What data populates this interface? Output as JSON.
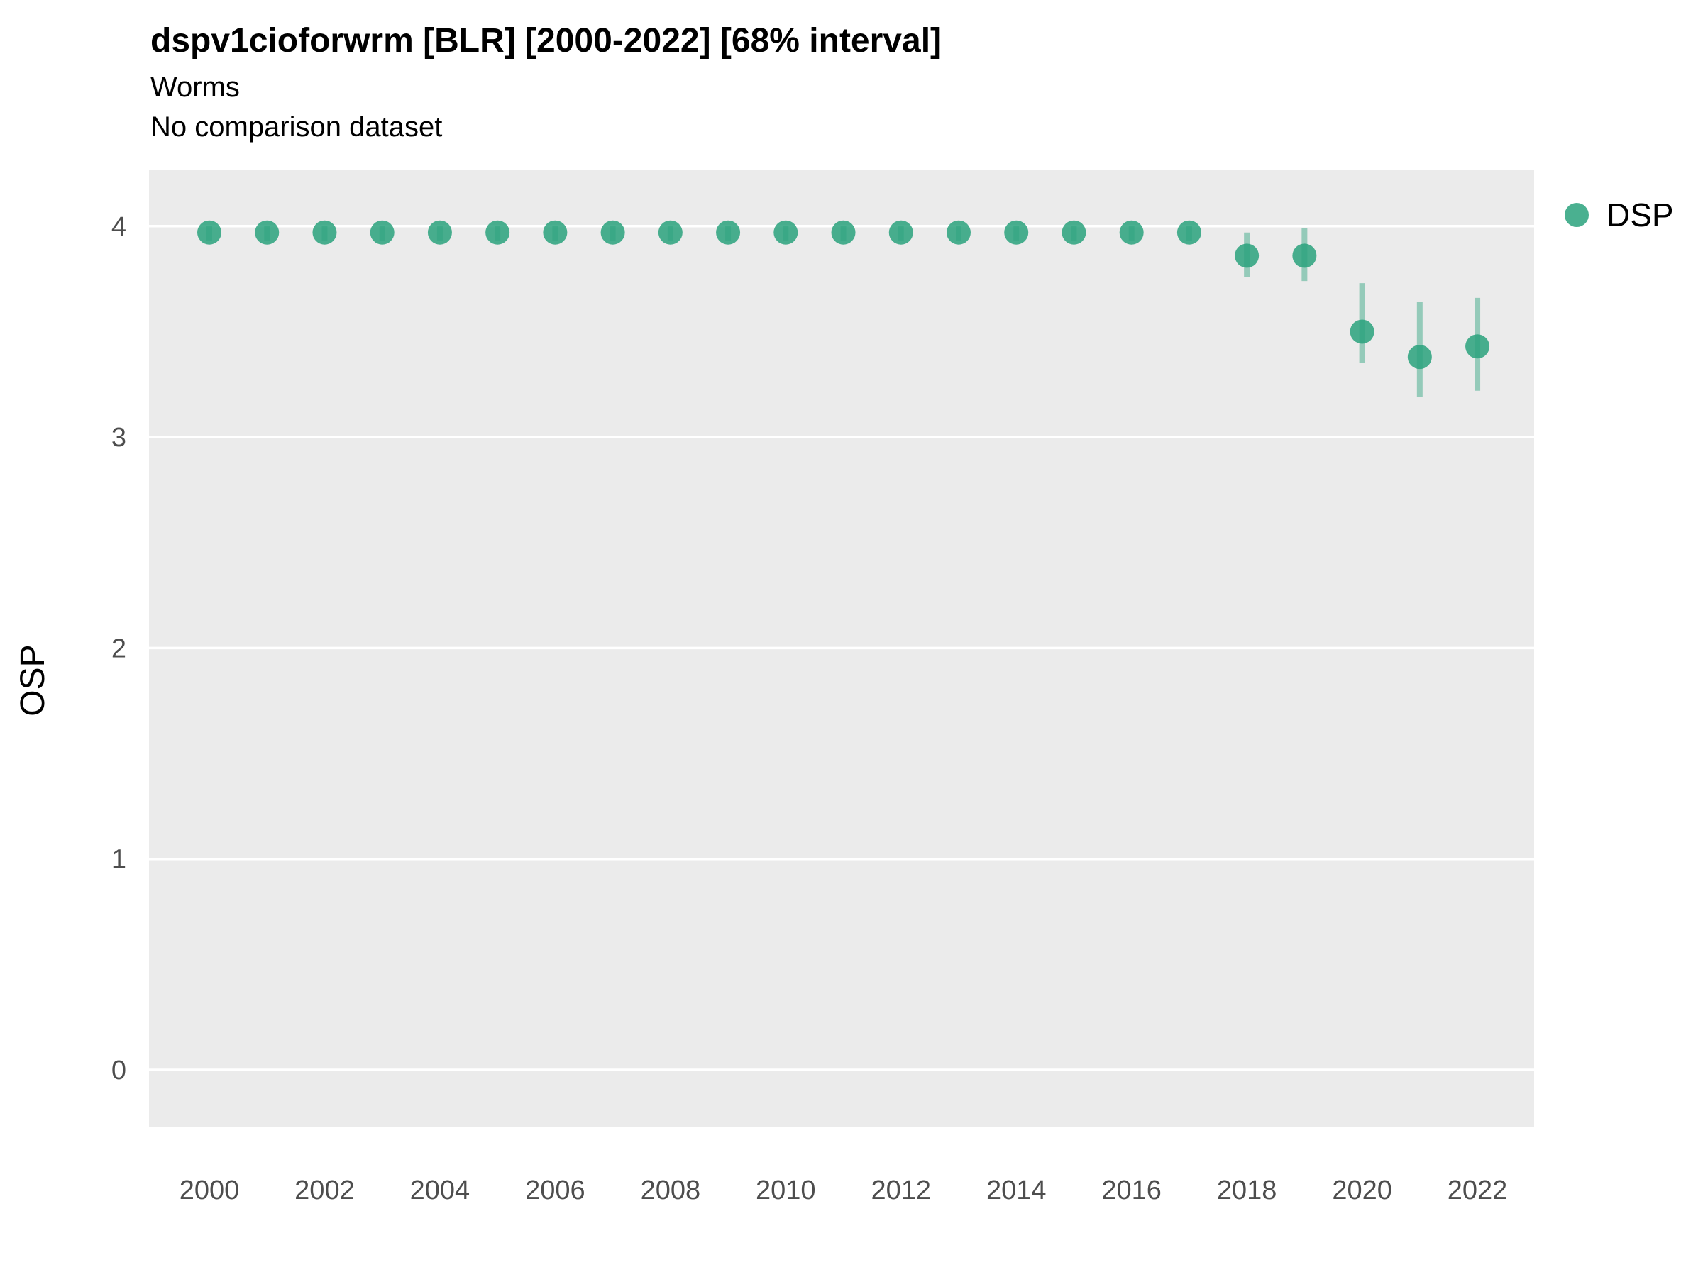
{
  "header": {
    "title": "dspv1cioforwrm [BLR] [2000-2022] [68% interval]",
    "subtitle1": "Worms",
    "subtitle2": "No comparison dataset"
  },
  "chart_data": {
    "type": "scatter",
    "title": "dspv1cioforwrm [BLR] [2000-2022] [68% interval]",
    "subtitle": "Worms",
    "caption": "No comparison dataset",
    "xlabel": "",
    "ylabel": "OSP",
    "ylim": [
      -0.27,
      4.27
    ],
    "xlim": [
      1999,
      2023
    ],
    "grid": "horizontal-major-white-on-gray",
    "legend_position": "right",
    "panel_color": "#EBEBEB",
    "grid_color": "#FFFFFF",
    "point_color": "#2AA27C",
    "interval_color": "#2AA27C",
    "interval_opacity": 0.45,
    "y_ticks": [
      0,
      1,
      2,
      3,
      4
    ],
    "x_ticks": [
      2000,
      2002,
      2004,
      2006,
      2008,
      2010,
      2012,
      2014,
      2016,
      2018,
      2020,
      2022
    ],
    "x": [
      2000,
      2001,
      2002,
      2003,
      2004,
      2005,
      2006,
      2007,
      2008,
      2009,
      2010,
      2011,
      2012,
      2013,
      2014,
      2015,
      2016,
      2017,
      2018,
      2019,
      2020,
      2021,
      2022
    ],
    "series": [
      {
        "name": "DSP",
        "values": [
          3.97,
          3.97,
          3.97,
          3.97,
          3.97,
          3.97,
          3.97,
          3.97,
          3.97,
          3.97,
          3.97,
          3.97,
          3.97,
          3.97,
          3.97,
          3.97,
          3.97,
          3.97,
          3.86,
          3.86,
          3.5,
          3.38,
          3.43
        ],
        "lower_68": [
          3.93,
          3.93,
          3.93,
          3.93,
          3.93,
          3.93,
          3.93,
          3.93,
          3.93,
          3.93,
          3.93,
          3.93,
          3.93,
          3.93,
          3.93,
          3.93,
          3.93,
          3.93,
          3.76,
          3.74,
          3.35,
          3.19,
          3.22
        ],
        "upper_68": [
          4.0,
          4.0,
          4.0,
          4.0,
          4.0,
          4.0,
          4.0,
          4.0,
          4.0,
          4.0,
          4.0,
          4.0,
          4.0,
          4.0,
          4.0,
          4.0,
          4.0,
          4.0,
          3.97,
          3.99,
          3.73,
          3.64,
          3.66
        ]
      }
    ]
  },
  "legend": {
    "label": "DSP"
  }
}
